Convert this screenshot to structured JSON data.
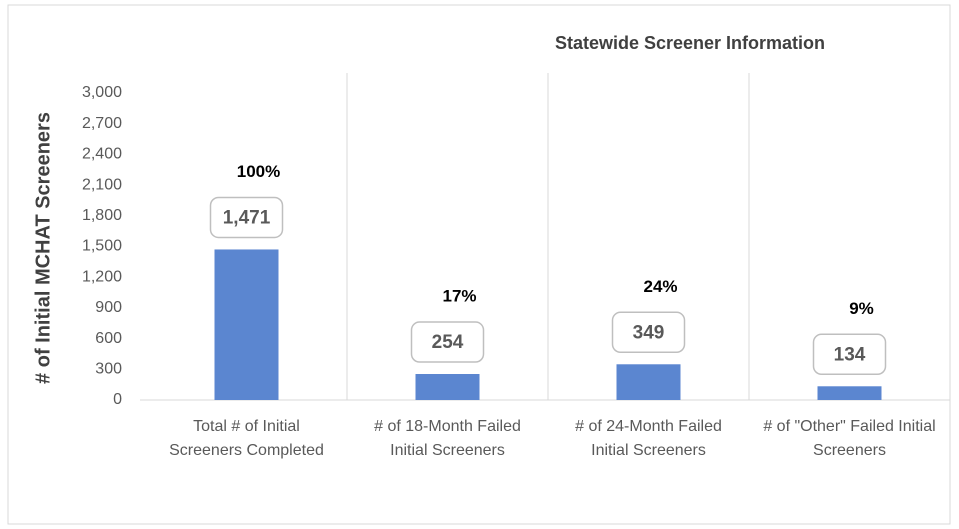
{
  "chart_data": {
    "type": "bar",
    "title": "Statewide Screener Information",
    "y_label": "# of Initial MCHAT Screeners",
    "categories": [
      "Total # of Initial Screeners Completed",
      "# of 18-Month Failed Initial Screeners",
      "# of 24-Month Failed Initial Screeners",
      "# of \"Other\"  Failed Initial Screeners"
    ],
    "values": [
      1471,
      254,
      349,
      134
    ],
    "value_labels": [
      "1,471",
      "254",
      "349",
      "134"
    ],
    "annotations": [
      "100%",
      "17%",
      "24%",
      "9%"
    ],
    "color": "#5b86d0",
    "ylim": [
      0,
      3000
    ],
    "yticks": [
      0,
      300,
      600,
      900,
      {
        "value": 1200,
        "label": "1,200"
      },
      {
        "value": 1500,
        "label": "1,500"
      },
      {
        "value": 1800,
        "label": "1,800"
      },
      {
        "value": 2100,
        "label": "2,100"
      },
      {
        "value": 2400,
        "label": "2,400"
      },
      {
        "value": 2700,
        "label": "2,700"
      },
      {
        "value": 3000,
        "label": "3,000"
      }
    ],
    "grid": false
  }
}
